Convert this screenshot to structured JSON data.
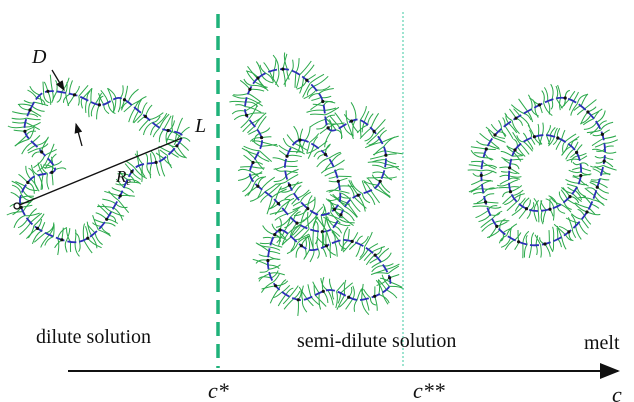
{
  "regimes": {
    "dilute": "dilute solution",
    "semi_dilute": "semi-dilute solution",
    "melt": "melt"
  },
  "axis": {
    "label": "c",
    "markers": {
      "c_star": "c*",
      "c_star_star": "c**"
    }
  },
  "annotations": {
    "diameter": "D",
    "length": "L",
    "end_to_end": "R",
    "end_to_end_sub": "e"
  },
  "colors": {
    "side_chains": "#2aa84a",
    "backbone": "#2b2fb8",
    "c_star_line": "#1fb27a",
    "c_star_star_line": "#3cc8a0",
    "ink": "#111111"
  }
}
